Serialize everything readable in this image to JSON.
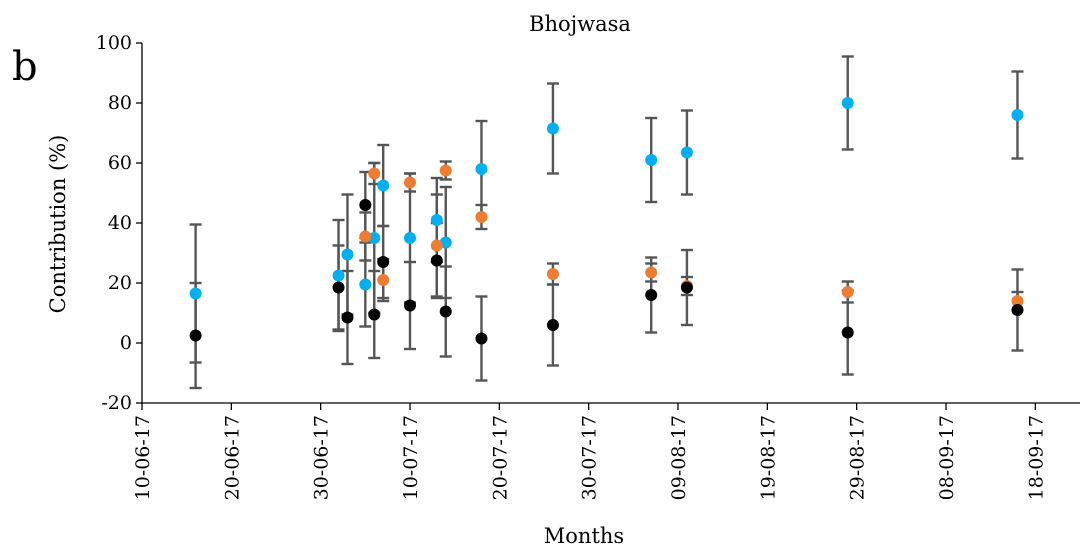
{
  "panel_label": "b",
  "chart_data": {
    "type": "scatter",
    "title": "Bhojwasa",
    "xlabel": "Months",
    "ylabel": "Contribution (%)",
    "x_type": "date",
    "xlim": [
      "2017-06-10",
      "2017-09-23"
    ],
    "ylim": [
      -20,
      100
    ],
    "yticks": [
      -20,
      0,
      20,
      40,
      60,
      80,
      100
    ],
    "ytick_labels": [
      "-20",
      "0",
      "20",
      "40",
      "60",
      "80",
      "100"
    ],
    "xticks": [
      "2017-06-10",
      "2017-06-20",
      "2017-06-30",
      "2017-07-10",
      "2017-07-20",
      "2017-07-30",
      "2017-08-09",
      "2017-08-19",
      "2017-08-29",
      "2017-09-08",
      "2017-09-18"
    ],
    "xtick_labels": [
      "10-06-17",
      "20-06-17",
      "30-06-17",
      "10-07-17",
      "20-07-17",
      "30-07-17",
      "09-08-17",
      "19-08-17",
      "29-08-17",
      "08-09-17",
      "18-09-17"
    ],
    "grid": false,
    "legend": "none",
    "error_bars": true,
    "series": [
      {
        "color": "#00B0F0",
        "points": [
          {
            "x": "2017-06-16",
            "y": 16.5,
            "err": 23
          },
          {
            "x": "2017-07-02",
            "y": 22.5,
            "err": 18.5
          },
          {
            "x": "2017-07-03",
            "y": 29.5,
            "err": 20
          },
          {
            "x": "2017-07-05",
            "y": 19.5,
            "err": 14
          },
          {
            "x": "2017-07-06",
            "y": 35,
            "err": 25
          },
          {
            "x": "2017-07-07",
            "y": 52.5,
            "err": 13.5
          },
          {
            "x": "2017-07-10",
            "y": 35,
            "err": 21.5
          },
          {
            "x": "2017-07-13",
            "y": 41,
            "err": 14
          },
          {
            "x": "2017-07-14",
            "y": 33.5,
            "err": 18.5
          },
          {
            "x": "2017-07-18",
            "y": 58,
            "err": 16
          },
          {
            "x": "2017-07-26",
            "y": 71.5,
            "err": 15
          },
          {
            "x": "2017-08-06",
            "y": 61,
            "err": 14
          },
          {
            "x": "2017-08-10",
            "y": 63.5,
            "err": 14
          },
          {
            "x": "2017-08-28",
            "y": 80,
            "err": 15.5
          },
          {
            "x": "2017-09-16",
            "y": 76,
            "err": 14.5
          }
        ]
      },
      {
        "color": "#ED7D31",
        "points": [
          {
            "x": "2017-07-05",
            "y": 35.5,
            "err": 8
          },
          {
            "x": "2017-07-06",
            "y": 56.5,
            "err": 3.5
          },
          {
            "x": "2017-07-07",
            "y": 21,
            "err": 7
          },
          {
            "x": "2017-07-10",
            "y": 53.5,
            "err": 3
          },
          {
            "x": "2017-07-13",
            "y": 32.5,
            "err": 17
          },
          {
            "x": "2017-07-14",
            "y": 57.5,
            "err": 3
          },
          {
            "x": "2017-07-18",
            "y": 42,
            "err": 4
          },
          {
            "x": "2017-07-26",
            "y": 23,
            "err": 3.5
          },
          {
            "x": "2017-08-06",
            "y": 23.5,
            "err": 3
          },
          {
            "x": "2017-08-10",
            "y": 19,
            "err": 3
          },
          {
            "x": "2017-08-28",
            "y": 17,
            "err": 3.5
          },
          {
            "x": "2017-09-16",
            "y": 14,
            "err": 3
          }
        ]
      },
      {
        "color": "#000000",
        "points": [
          {
            "x": "2017-06-16",
            "y": 2.5,
            "err": 17.5
          },
          {
            "x": "2017-07-02",
            "y": 18.5,
            "err": 14
          },
          {
            "x": "2017-07-03",
            "y": 8.5,
            "err": 15.5
          },
          {
            "x": "2017-07-05",
            "y": 46,
            "err": 11
          },
          {
            "x": "2017-07-06",
            "y": 9.5,
            "err": 14.5
          },
          {
            "x": "2017-07-07",
            "y": 27,
            "err": 12
          },
          {
            "x": "2017-07-10",
            "y": 12.5,
            "err": 14.5
          },
          {
            "x": "2017-07-13",
            "y": 27.5,
            "err": 12.5
          },
          {
            "x": "2017-07-14",
            "y": 10.5,
            "err": 15
          },
          {
            "x": "2017-07-18",
            "y": 1.5,
            "err": 14
          },
          {
            "x": "2017-07-26",
            "y": 6,
            "err": 13.5
          },
          {
            "x": "2017-08-06",
            "y": 16,
            "err": 12.5
          },
          {
            "x": "2017-08-10",
            "y": 18.5,
            "err": 12.5
          },
          {
            "x": "2017-08-28",
            "y": 3.5,
            "err": 14
          },
          {
            "x": "2017-09-16",
            "y": 11,
            "err": 13.5
          }
        ]
      }
    ]
  }
}
